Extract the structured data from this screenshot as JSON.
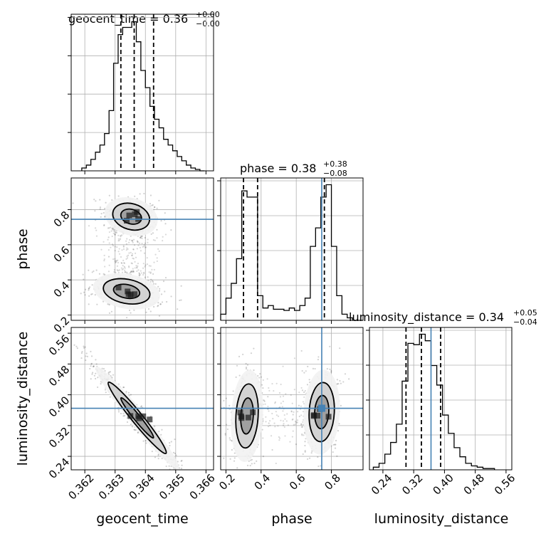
{
  "chart_data": {
    "type": "corner",
    "parameters": [
      "geocent_time",
      "phase",
      "luminosity_distance"
    ],
    "axis_labels": [
      "geocent_time",
      "phase",
      "luminosity_distance"
    ],
    "titles": [
      {
        "param": "geocent_time",
        "text": "geocent_time = 0.36",
        "plus": "+0.00",
        "minus": "−0.00"
      },
      {
        "param": "phase",
        "text": "phase = 0.38",
        "plus": "+0.38",
        "minus": "−0.08"
      },
      {
        "param": "luminosity_distance",
        "text": "luminosity_distance = 0.34",
        "plus": "+0.05",
        "minus": "−0.04"
      }
    ],
    "ranges": {
      "geocent_time": [
        0.36155,
        0.36625
      ],
      "phase": [
        0.17,
        0.98
      ],
      "luminosity_distance": [
        0.205,
        0.575
      ]
    },
    "ticks": {
      "geocent_time": {
        "values": [
          0.362,
          0.363,
          0.364,
          0.365,
          0.366
        ],
        "labels": [
          "0.362",
          "0.363",
          "0.364",
          "0.365",
          "0.366"
        ]
      },
      "phase_x": {
        "values": [
          0.2,
          0.4,
          0.6,
          0.8
        ],
        "labels": [
          "0.2",
          "0.4",
          "0.6",
          "0.8"
        ]
      },
      "phase_y": {
        "values": [
          0.2,
          0.4,
          0.6,
          0.8
        ],
        "labels": [
          "0.2",
          "0.4",
          "0.6",
          "0.8"
        ]
      },
      "luminosity_distance": {
        "values": [
          0.24,
          0.32,
          0.4,
          0.48,
          0.56
        ],
        "labels": [
          "0.24",
          "0.32",
          "0.40",
          "0.48",
          "0.56"
        ]
      }
    },
    "truths": {
      "phase": 0.745,
      "luminosity_distance": 0.365
    },
    "quantiles": {
      "geocent_time": [
        0.36319,
        0.36363,
        0.36427
      ],
      "phase": [
        0.3,
        0.38,
        0.76
      ],
      "luminosity_distance": [
        0.3,
        0.34,
        0.39
      ]
    },
    "histograms": {
      "geocent_time": {
        "edges": [
          0.3619,
          0.36205,
          0.3622,
          0.36235,
          0.3625,
          0.36265,
          0.3628,
          0.36295,
          0.3631,
          0.36325,
          0.3634,
          0.36355,
          0.3637,
          0.36385,
          0.364,
          0.36415,
          0.3643,
          0.36445,
          0.3646,
          0.36475,
          0.3649,
          0.36505,
          0.3652,
          0.36535,
          0.3655,
          0.36565,
          0.3658,
          0.36595
        ],
        "counts": [
          2,
          4,
          8,
          13,
          18,
          26,
          42,
          75,
          95,
          100,
          100,
          104,
          90,
          70,
          58,
          45,
          36,
          30,
          22,
          18,
          14,
          10,
          7,
          4,
          2,
          1,
          0
        ]
      },
      "phase": {
        "edges": [
          0.17,
          0.2,
          0.23,
          0.26,
          0.29,
          0.32,
          0.35,
          0.38,
          0.41,
          0.44,
          0.47,
          0.5,
          0.53,
          0.56,
          0.59,
          0.62,
          0.65,
          0.68,
          0.71,
          0.74,
          0.77,
          0.8,
          0.83,
          0.86,
          0.89,
          0.92,
          0.95,
          0.98
        ],
        "counts": [
          5,
          18,
          30,
          50,
          105,
          100,
          100,
          20,
          10,
          12,
          9,
          9,
          8,
          10,
          8,
          12,
          18,
          60,
          75,
          100,
          110,
          60,
          20,
          5,
          2,
          0,
          0
        ]
      },
      "luminosity_distance": {
        "edges": [
          0.215,
          0.23,
          0.245,
          0.26,
          0.275,
          0.29,
          0.305,
          0.32,
          0.335,
          0.35,
          0.365,
          0.38,
          0.395,
          0.41,
          0.425,
          0.44,
          0.455,
          0.47,
          0.485,
          0.5,
          0.515,
          0.53
        ],
        "counts": [
          2,
          5,
          12,
          21,
          35,
          68,
          97,
          96,
          104,
          99,
          80,
          65,
          42,
          28,
          17,
          10,
          5,
          3,
          2,
          1,
          1
        ]
      }
    },
    "posterior_modes": {
      "geocent_time_vs_phase": [
        {
          "cx": 0.36353,
          "cy": 0.76,
          "sx": 0.00038,
          "sy": 0.048,
          "rho": -0.2,
          "weight": 0.5
        },
        {
          "cx": 0.36338,
          "cy": 0.335,
          "sx": 0.00048,
          "sy": 0.045,
          "rho": -0.25,
          "weight": 0.5
        }
      ],
      "geocent_time_vs_luminosity_distance": [
        {
          "cx": 0.36373,
          "cy": 0.34,
          "sx": 0.0006,
          "sy": 0.058,
          "rho": -0.97,
          "weight": 1.0
        }
      ],
      "phase_vs_luminosity_distance": [
        {
          "cx": 0.32,
          "cy": 0.345,
          "sx": 0.04,
          "sy": 0.052,
          "rho": 0.15,
          "weight": 0.5
        },
        {
          "cx": 0.745,
          "cy": 0.355,
          "sx": 0.045,
          "sy": 0.048,
          "rho": 0.1,
          "weight": 0.5
        }
      ]
    },
    "colors": {
      "truth": "#4682b4",
      "hist": "#000000",
      "quantile": "#000000",
      "grid": "#b0b0b0",
      "contour": "#000000"
    }
  }
}
